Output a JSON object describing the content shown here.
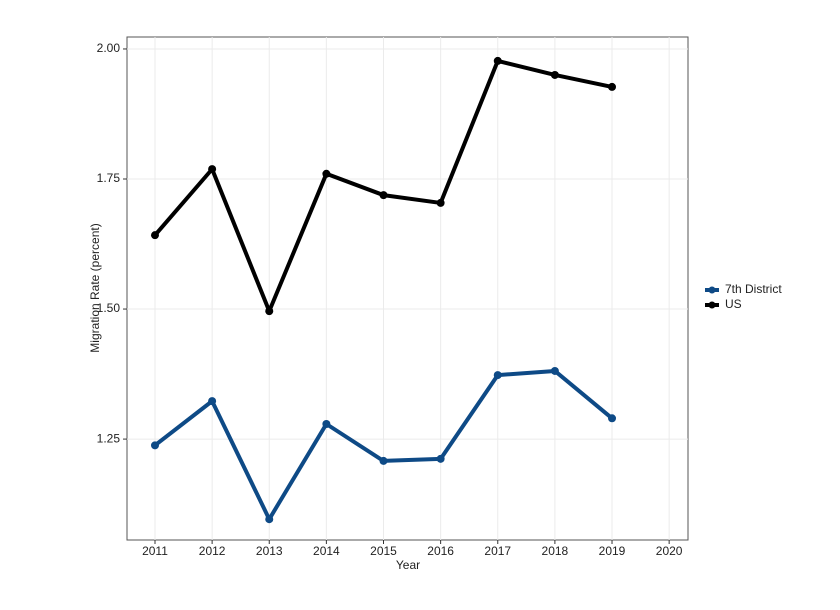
{
  "chart_data": {
    "type": "line",
    "x_label": "Year",
    "y_label": "Migration Rate (percent)",
    "x": [
      2011,
      2012,
      2013,
      2014,
      2015,
      2016,
      2017,
      2018,
      2019
    ],
    "series": [
      {
        "name": "7th District",
        "color": "#0e4a86",
        "values": [
          1.238,
          1.323,
          1.096,
          1.279,
          1.208,
          1.212,
          1.373,
          1.381,
          1.29
        ]
      },
      {
        "name": "US",
        "color": "#000000",
        "values": [
          1.642,
          1.769,
          1.496,
          1.76,
          1.719,
          1.704,
          1.977,
          1.95,
          1.927
        ]
      }
    ],
    "xlim": [
      2010.51,
      2020.33
    ],
    "xticks": [
      2011,
      2012,
      2013,
      2014,
      2015,
      2016,
      2017,
      2018,
      2019,
      2020
    ],
    "ylim": [
      1.056,
      2.023
    ],
    "yticks": [
      1.25,
      {
        "value": 1.5,
        "label": "1.50"
      },
      1.75,
      {
        "value": 2,
        "label": "2.00"
      }
    ],
    "grid": true,
    "legend": "right"
  }
}
